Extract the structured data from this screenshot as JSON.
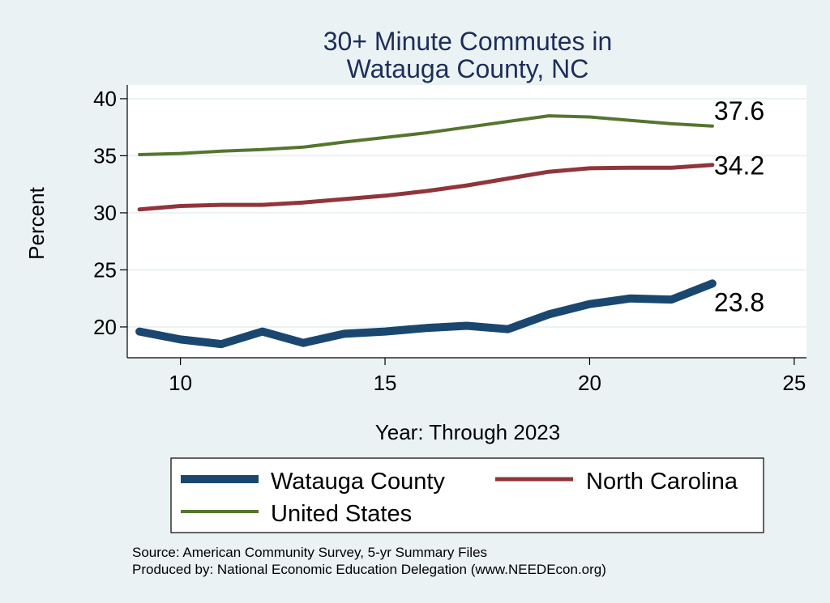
{
  "chart_data": {
    "type": "line",
    "title_lines": [
      "30+ Minute Commutes in",
      "Watauga County, NC"
    ],
    "xlabel": "Year: Through 2023",
    "ylabel": "Percent",
    "xlim": [
      8.7,
      25.3
    ],
    "ylim": [
      17.3,
      41.2
    ],
    "xticks": [
      10,
      15,
      20,
      25
    ],
    "yticks": [
      20,
      25,
      30,
      35,
      40
    ],
    "grid": "horizontal",
    "x": [
      9,
      10,
      11,
      12,
      13,
      14,
      15,
      16,
      17,
      18,
      19,
      20,
      21,
      22,
      23
    ],
    "series": [
      {
        "name": "Watauga County",
        "color": "#1a476f",
        "values": [
          19.6,
          18.9,
          18.5,
          19.6,
          18.6,
          19.4,
          19.6,
          19.9,
          20.1,
          19.8,
          21.1,
          22.0,
          22.5,
          22.4,
          23.8
        ],
        "end_label": "23.8"
      },
      {
        "name": "North Carolina",
        "color": "#90353b",
        "values": [
          30.3,
          30.6,
          30.7,
          30.7,
          30.9,
          31.2,
          31.5,
          31.9,
          32.4,
          33.0,
          33.6,
          33.9,
          33.95,
          33.95,
          34.2
        ],
        "end_label": "34.2"
      },
      {
        "name": "United States",
        "color": "#55752f",
        "values": [
          35.1,
          35.2,
          35.4,
          35.55,
          35.75,
          36.2,
          36.6,
          37.0,
          37.5,
          38.0,
          38.5,
          38.4,
          38.1,
          37.8,
          37.6
        ],
        "end_label": "37.6"
      }
    ],
    "legend": {
      "placement": "bottom",
      "entries": [
        "Watauga County",
        "North Carolina",
        "United States"
      ]
    },
    "notes": [
      "Source: American Community Survey, 5-yr Summary Files",
      "Produced by: National Economic Education Delegation (www.NEEDEcon.org)"
    ]
  },
  "colors": {
    "background": "#eaf2f3",
    "plot_background": "#ffffff",
    "grid": "#eaf2f3",
    "title": "#1e2d5a",
    "axis": "#000000"
  }
}
